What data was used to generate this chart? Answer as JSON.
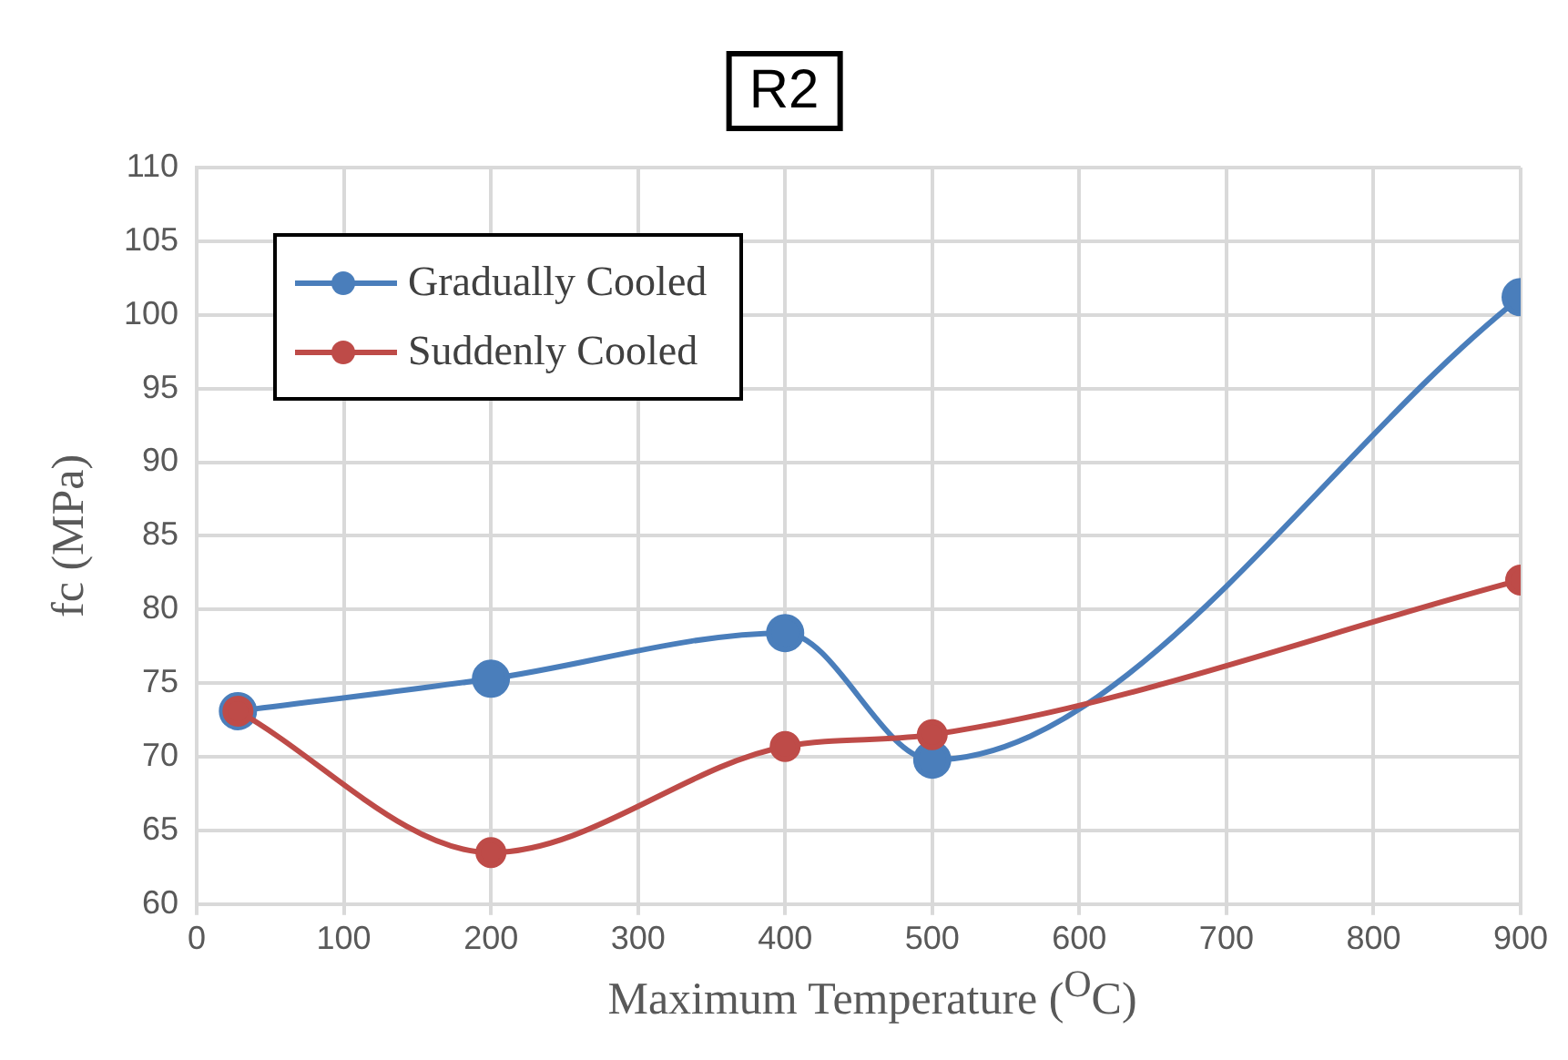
{
  "chart_data": {
    "type": "line",
    "title": "R2",
    "xlabel": "Maximum Temperature ($^{O}$C)",
    "ylabel": "fc (MPa)",
    "x": [
      28,
      200,
      400,
      500,
      900
    ],
    "series": [
      {
        "name": "Gradually Cooled",
        "color": "#4a7ebb",
        "values": [
          73.1,
          75.3,
          78.4,
          69.8,
          101.2
        ]
      },
      {
        "name": "Suddenly Cooled",
        "color": "#be4b48",
        "values": [
          73.1,
          63.5,
          70.7,
          71.5,
          82.0
        ]
      }
    ],
    "xlim": [
      0,
      900
    ],
    "xticks": [
      0,
      100,
      200,
      300,
      400,
      500,
      600,
      700,
      800,
      900
    ],
    "ylim": [
      60,
      110
    ],
    "yticks": [
      60,
      65,
      70,
      75,
      80,
      85,
      90,
      95,
      100,
      105,
      110
    ],
    "grid": true,
    "legend": "top left",
    "marker": "circle",
    "line_style": "solid"
  }
}
